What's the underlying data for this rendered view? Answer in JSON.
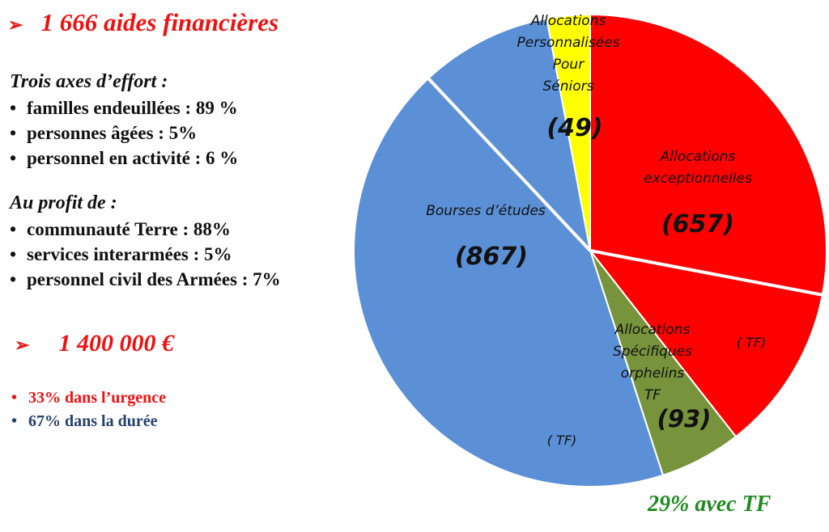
{
  "headline_aides": "1 666 aides financières",
  "headline_montant": "1 400 000 €",
  "arrow_glyph": "➢",
  "axes_title": "Trois axes d’effort :",
  "axes_items": [
    "familles endeuillées : 89 %",
    "personnes âgées : 5%",
    "personnel en activité : 6 %"
  ],
  "profit_title": "Au profit de  :",
  "profit_items": [
    "communauté Terre : 88%",
    "services interarmées : 5%",
    "personnel civil des Armées : 7%"
  ],
  "urgence_items": [
    "33% dans l’urgence",
    "67% dans la durée"
  ],
  "tf_note": "29% avec TF",
  "colors": {
    "red": "#ee1111",
    "navy": "#254070",
    "green": "#1f8a1f"
  },
  "chart_data": {
    "type": "pie",
    "start_angle": "12 o'clock, clockwise",
    "slices": [
      {
        "label_lines": [
          "Allocations",
          "exceptionnelles"
        ],
        "value": 657,
        "value_label": "(657)",
        "color": "#ff0000",
        "tf_share": 0.29,
        "tf_label": "( TF)"
      },
      {
        "label_lines": [
          "Allocations",
          "Spécifiques",
          "orphelins",
          "TF"
        ],
        "value": 93,
        "value_label": "(93)",
        "color": "#77933c"
      },
      {
        "label_lines": [
          "Bourses d’études"
        ],
        "value": 867,
        "value_label": "(867)",
        "color": "#5b8fd6",
        "tf_share": 0.174,
        "tf_label": "( TF)"
      },
      {
        "label_lines": [
          "Allocations",
          "Personnalisées",
          "Pour",
          "Séniors"
        ],
        "value": 49,
        "value_label": "(49)",
        "color": "#ffff00"
      }
    ]
  }
}
